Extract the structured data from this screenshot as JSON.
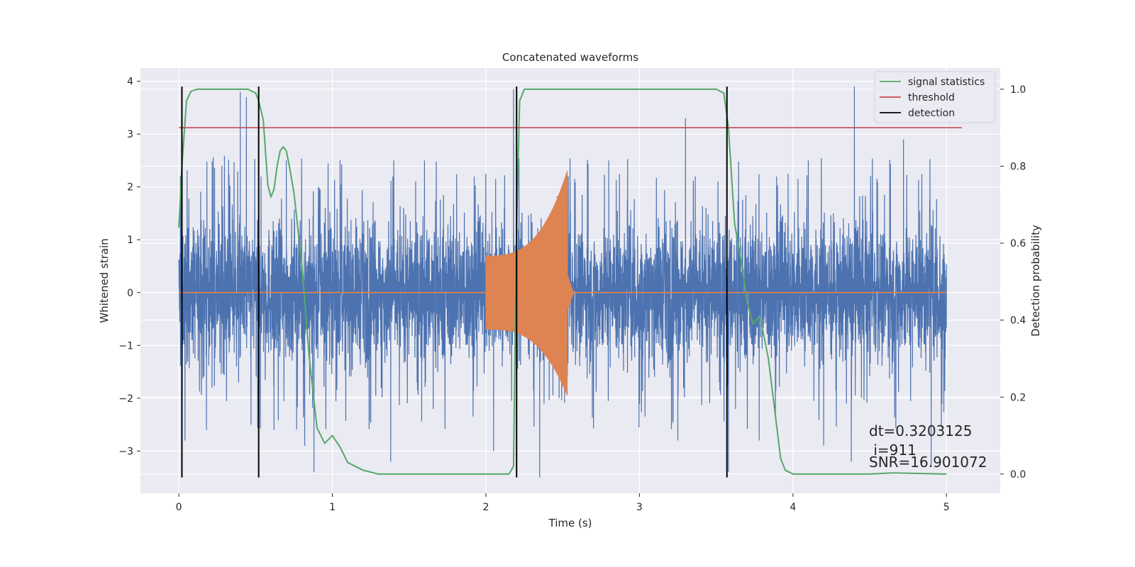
{
  "chart_data": {
    "type": "line",
    "title": "Concatenated waveforms",
    "xlabel": "Time (s)",
    "ylabel": "Whitened strain",
    "ylabel_right": "Detection probability",
    "xlim": [
      -0.25,
      5.35
    ],
    "ylim": [
      -3.8,
      4.25
    ],
    "ylim_right": [
      -0.05,
      1.055
    ],
    "xticks": [
      0,
      1,
      2,
      3,
      4,
      5
    ],
    "yticks": [
      -3,
      -2,
      -1,
      0,
      1,
      2,
      3,
      4
    ],
    "yticks_right": [
      0.0,
      0.2,
      0.4,
      0.6,
      0.8,
      1.0
    ],
    "xtick_labels": [
      "0",
      "1",
      "2",
      "3",
      "4",
      "5"
    ],
    "ytick_labels": [
      "−3",
      "−2",
      "−1",
      "0",
      "1",
      "2",
      "3",
      "4"
    ],
    "ytick_right_labels": [
      "0.0",
      "0.2",
      "0.4",
      "0.6",
      "0.8",
      "1.0"
    ],
    "grid": true,
    "legend_position": "top-right",
    "legend": [
      {
        "label": "signal statistics",
        "color": "#55a868"
      },
      {
        "label": "threshold",
        "color": "#c44e52"
      },
      {
        "label": "detection",
        "color": "#000000"
      }
    ],
    "colors": {
      "strain": "#4c72b0",
      "injected_waveform": "#dd8452",
      "signal_statistics": "#55a868",
      "threshold": "#c44e52",
      "detection": "#000000",
      "background": "#eaeaf2",
      "grid": "#ffffff"
    },
    "strain": {
      "x_range": [
        0,
        5
      ],
      "spike_values": [
        [
          0.01,
          2.2
        ],
        [
          0.04,
          -2.8
        ],
        [
          0.18,
          -2.6
        ],
        [
          0.28,
          2.4
        ],
        [
          0.4,
          3.8
        ],
        [
          0.44,
          3.7
        ],
        [
          0.47,
          -2.5
        ],
        [
          0.62,
          -2.6
        ],
        [
          0.7,
          2.5
        ],
        [
          0.82,
          -2.9
        ],
        [
          0.88,
          -3.4
        ],
        [
          1.05,
          2.5
        ],
        [
          1.4,
          2.5
        ],
        [
          1.38,
          -3.2
        ],
        [
          1.6,
          2.5
        ],
        [
          2.05,
          -3.0
        ],
        [
          2.18,
          3.85
        ],
        [
          2.2,
          3.8
        ],
        [
          2.35,
          -3.5
        ],
        [
          2.8,
          2.5
        ],
        [
          3.25,
          -2.8
        ],
        [
          3.3,
          3.3
        ],
        [
          3.58,
          -3.4
        ],
        [
          3.78,
          -2.8
        ],
        [
          4.1,
          2.5
        ],
        [
          4.2,
          -2.9
        ],
        [
          4.38,
          -3.2
        ],
        [
          4.4,
          3.9
        ],
        [
          4.72,
          2.9
        ],
        [
          4.9,
          -3.3
        ]
      ],
      "typical_range": [
        -1.5,
        1.5
      ]
    },
    "injected_waveform": {
      "x_start": 2.0,
      "x_end": 2.53,
      "start_amplitude": 0.7,
      "end_amplitude_up": 2.3,
      "end_amplitude_down": -1.95,
      "baseline": 0
    },
    "signal_statistics": {
      "x": [
        0.0,
        0.02,
        0.05,
        0.08,
        0.12,
        0.2,
        0.3,
        0.4,
        0.45,
        0.5,
        0.52,
        0.55,
        0.58,
        0.6,
        0.62,
        0.64,
        0.66,
        0.68,
        0.7,
        0.72,
        0.75,
        0.8,
        0.85,
        0.9,
        0.95,
        1.0,
        1.05,
        1.1,
        1.2,
        1.3,
        1.5,
        2.0,
        2.15,
        2.18,
        2.2,
        2.22,
        2.25,
        2.3,
        2.5,
        3.0,
        3.4,
        3.5,
        3.55,
        3.58,
        3.62,
        3.66,
        3.7,
        3.74,
        3.78,
        3.8,
        3.84,
        3.88,
        3.92,
        3.95,
        4.0,
        4.5,
        4.65,
        5.0
      ],
      "y": [
        0.64,
        0.8,
        0.97,
        0.995,
        1.0,
        1.0,
        1.0,
        1.0,
        1.0,
        0.99,
        0.97,
        0.92,
        0.75,
        0.72,
        0.74,
        0.8,
        0.84,
        0.85,
        0.84,
        0.8,
        0.73,
        0.55,
        0.3,
        0.12,
        0.08,
        0.1,
        0.07,
        0.03,
        0.01,
        0.0,
        0.0,
        0.0,
        0.0,
        0.02,
        0.65,
        0.97,
        1.0,
        1.0,
        1.0,
        1.0,
        1.0,
        1.0,
        0.99,
        0.9,
        0.65,
        0.56,
        0.45,
        0.39,
        0.41,
        0.38,
        0.3,
        0.17,
        0.04,
        0.01,
        0.0,
        0.0,
        0.003,
        0.0
      ]
    },
    "threshold": {
      "value": 0.9,
      "x_start": 0.0,
      "x_end": 5.1
    },
    "detections": [
      0.02,
      0.52,
      2.2,
      3.57
    ],
    "detection_line_range": [
      -3.5,
      3.9
    ],
    "annotations": {
      "dt": "dt=0.3203125",
      "i": " i=911",
      "snr": "SNR=16.901072"
    }
  }
}
